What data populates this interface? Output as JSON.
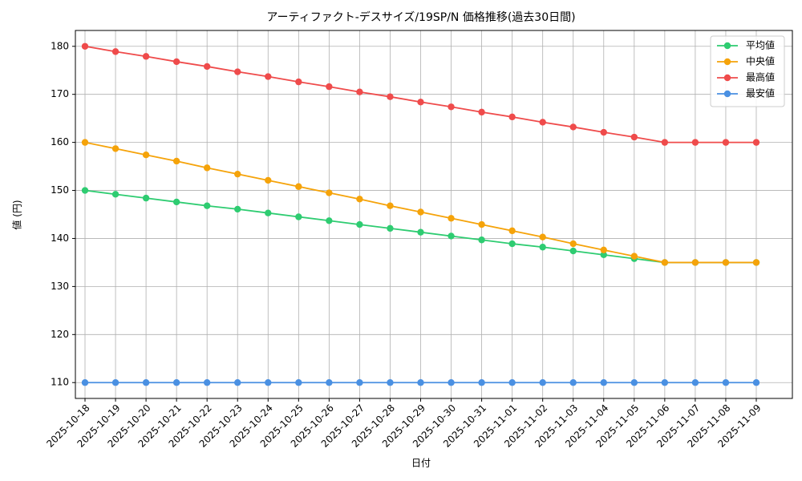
{
  "chart_data": {
    "type": "line",
    "title": "アーティファクト-デスサイズ/19SP/N 価格推移(過去30日間)",
    "x_label": "日付",
    "y_label": "値 (円)",
    "categories": [
      "2025-10-18",
      "2025-10-19",
      "2025-10-20",
      "2025-10-21",
      "2025-10-22",
      "2025-10-23",
      "2025-10-24",
      "2025-10-25",
      "2025-10-26",
      "2025-10-27",
      "2025-10-28",
      "2025-10-29",
      "2025-10-30",
      "2025-10-31",
      "2025-11-01",
      "2025-11-02",
      "2025-11-03",
      "2025-11-04",
      "2025-11-05",
      "2025-11-06",
      "2025-11-07",
      "2025-11-08",
      "2025-11-09"
    ],
    "series": [
      {
        "name": "平均値",
        "color": "#2ecc71",
        "values": [
          150,
          149.2,
          148.4,
          147.6,
          146.8,
          146.1,
          145.3,
          144.5,
          143.7,
          142.9,
          142.1,
          141.3,
          140.5,
          139.7,
          138.9,
          138.2,
          137.4,
          136.6,
          135.8,
          135,
          135,
          135,
          135
        ]
      },
      {
        "name": "中央値",
        "color": "#f5a30a",
        "values": [
          160,
          158.7,
          157.4,
          156.1,
          154.7,
          153.4,
          152.1,
          150.8,
          149.5,
          148.2,
          146.8,
          145.5,
          144.2,
          142.9,
          141.6,
          140.3,
          138.9,
          137.6,
          136.3,
          135,
          135,
          135,
          135
        ]
      },
      {
        "name": "最高値",
        "color": "#ef4b4b",
        "values": [
          180,
          178.9,
          177.9,
          176.8,
          175.8,
          174.7,
          173.7,
          172.6,
          171.6,
          170.5,
          169.5,
          168.4,
          167.4,
          166.3,
          165.3,
          164.2,
          163.2,
          162.1,
          161.1,
          160,
          160,
          160,
          160
        ]
      },
      {
        "name": "最安値",
        "color": "#4a90e2",
        "values": [
          110,
          110,
          110,
          110,
          110,
          110,
          110,
          110,
          110,
          110,
          110,
          110,
          110,
          110,
          110,
          110,
          110,
          110,
          110,
          110,
          110,
          110,
          110
        ]
      }
    ],
    "ylim": [
      106.7,
      183.3
    ],
    "yticks": [
      110,
      120,
      130,
      140,
      150,
      160,
      170,
      180
    ],
    "grid": true,
    "legend": "upper right"
  }
}
